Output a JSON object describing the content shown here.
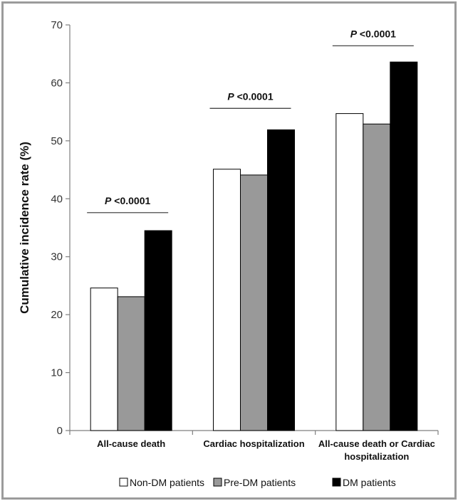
{
  "chart_data": {
    "type": "bar",
    "ylabel": "Cumulative incidence rate (%)",
    "xlabel": "",
    "ylim": [
      0,
      70
    ],
    "yticks": [
      0,
      10,
      20,
      30,
      40,
      50,
      60,
      70
    ],
    "grid": false,
    "legend_position": "bottom",
    "categories": [
      [
        "All-cause death"
      ],
      [
        "Cardiac hospitalization"
      ],
      [
        "All-cause death or Cardiac",
        "hospitalization"
      ]
    ],
    "series": [
      {
        "name": "Non-DM patients",
        "color": "#ffffff",
        "values": [
          24.6,
          45.1,
          54.7
        ]
      },
      {
        "name": "Pre-DM patients",
        "color": "#999999",
        "values": [
          23.1,
          44.1,
          52.9
        ]
      },
      {
        "name": "DM patients",
        "color": "#000000",
        "values": [
          34.5,
          51.9,
          63.6
        ]
      }
    ],
    "annotations": [
      {
        "category_index": 0,
        "italic": "P",
        "text": " <0.0001",
        "line_at": 37.6
      },
      {
        "category_index": 1,
        "italic": "P",
        "text": " <0.0001",
        "line_at": 55.6
      },
      {
        "category_index": 2,
        "italic": "P",
        "text": " <0.0001",
        "line_at": 66.4
      }
    ]
  }
}
